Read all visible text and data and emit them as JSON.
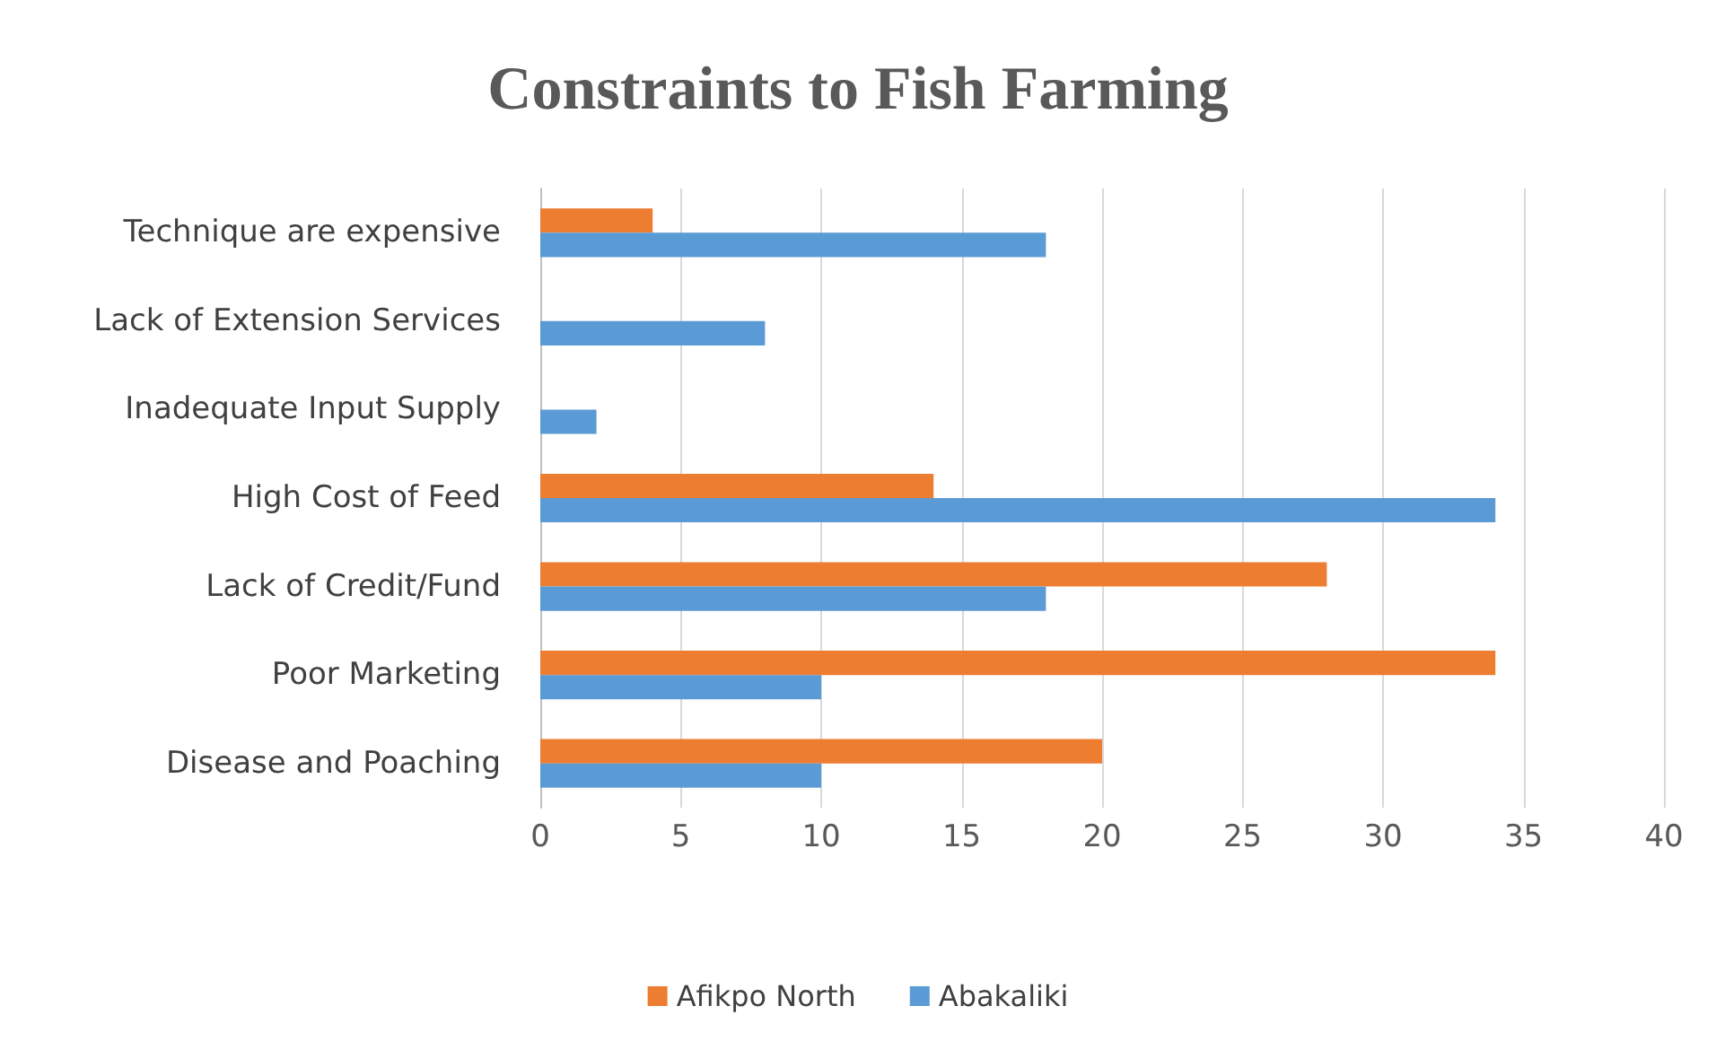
{
  "chart_data": {
    "type": "bar",
    "orientation": "horizontal",
    "title": "Constraints to Fish Farming",
    "categories": [
      "Technique are expensive",
      "Lack of Extension Services",
      "Inadequate Input Supply",
      "High Cost of Feed",
      "Lack of Credit/Fund",
      "Poor Marketing",
      "Disease and Poaching"
    ],
    "series": [
      {
        "name": "Afikpo North",
        "color": "#ed7d31",
        "values": [
          4,
          null,
          null,
          14,
          28,
          34,
          20
        ]
      },
      {
        "name": "Abakaliki",
        "color": "#5b9bd5",
        "values": [
          18,
          8,
          2,
          34,
          18,
          10,
          10
        ]
      }
    ],
    "xlim": [
      0,
      40
    ],
    "xticks": [
      0,
      5,
      10,
      15,
      20,
      25,
      30,
      35,
      40
    ],
    "grid": "x",
    "legend": "bottom"
  }
}
